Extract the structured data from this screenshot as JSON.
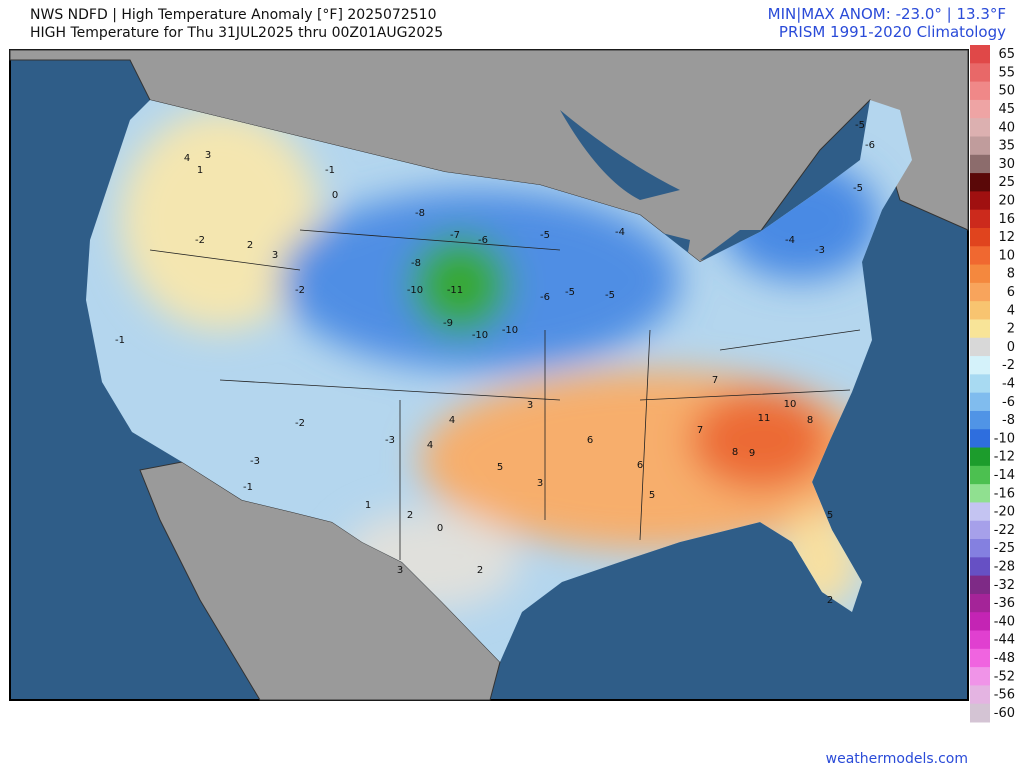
{
  "header": {
    "title_line1": "NWS NDFD | High Temperature Anomaly [°F] 2025072510",
    "title_line2": "HIGH Temperature for Thu 31JUL2025 thru 00Z01AUG2025",
    "stats": "MIN|MAX ANOM: -23.0°  |  13.3°F",
    "climatology": "PRISM 1991-2020 Climatology"
  },
  "colorbar": {
    "ticks": [
      65,
      55,
      50,
      45,
      40,
      35,
      30,
      25,
      20,
      16,
      12,
      10,
      8,
      6,
      4,
      2,
      0,
      -2,
      -4,
      -6,
      -8,
      -10,
      -12,
      -14,
      -16,
      -20,
      -22,
      -25,
      -28,
      -32,
      -36,
      -40,
      -44,
      -48,
      -52,
      -56,
      -60
    ],
    "colors": [
      "#e04848",
      "#e86868",
      "#f08888",
      "#eea4a4",
      "#dcb0b0",
      "#c09c9c",
      "#8c6c6c",
      "#5a0808",
      "#a01010",
      "#cc2a1c",
      "#e0441e",
      "#f06830",
      "#f4883e",
      "#f8a45c",
      "#f8c470",
      "#f8e498",
      "#d8d8d8",
      "#d4f2fa",
      "#a8daf2",
      "#80bcee",
      "#5094e6",
      "#2e6ede",
      "#1c9c2c",
      "#4cc050",
      "#90e090",
      "#c4c4f2",
      "#a6a0ea",
      "#8480e0",
      "#6650c4",
      "#7e2a86",
      "#a42498",
      "#c424b4",
      "#e040d0",
      "#f064e0",
      "#f094e8",
      "#e4b4e2",
      "#d4c4d4"
    ]
  },
  "map_values": [
    -11,
    -10,
    -10,
    -10,
    -9,
    -8,
    -8,
    -7,
    -6,
    -6,
    -5,
    -5,
    -5,
    -4,
    -5,
    -6,
    -5,
    -4,
    -3,
    -2,
    -1,
    0,
    1,
    3,
    4,
    2,
    3,
    -2,
    -1,
    9,
    10,
    11,
    8,
    7,
    6,
    5,
    4,
    5,
    4,
    3,
    2,
    3,
    0,
    -3,
    -2,
    -1,
    -3,
    1,
    2,
    5,
    2,
    6,
    7,
    8,
    3
  ],
  "footer": "weathermodels.com"
}
